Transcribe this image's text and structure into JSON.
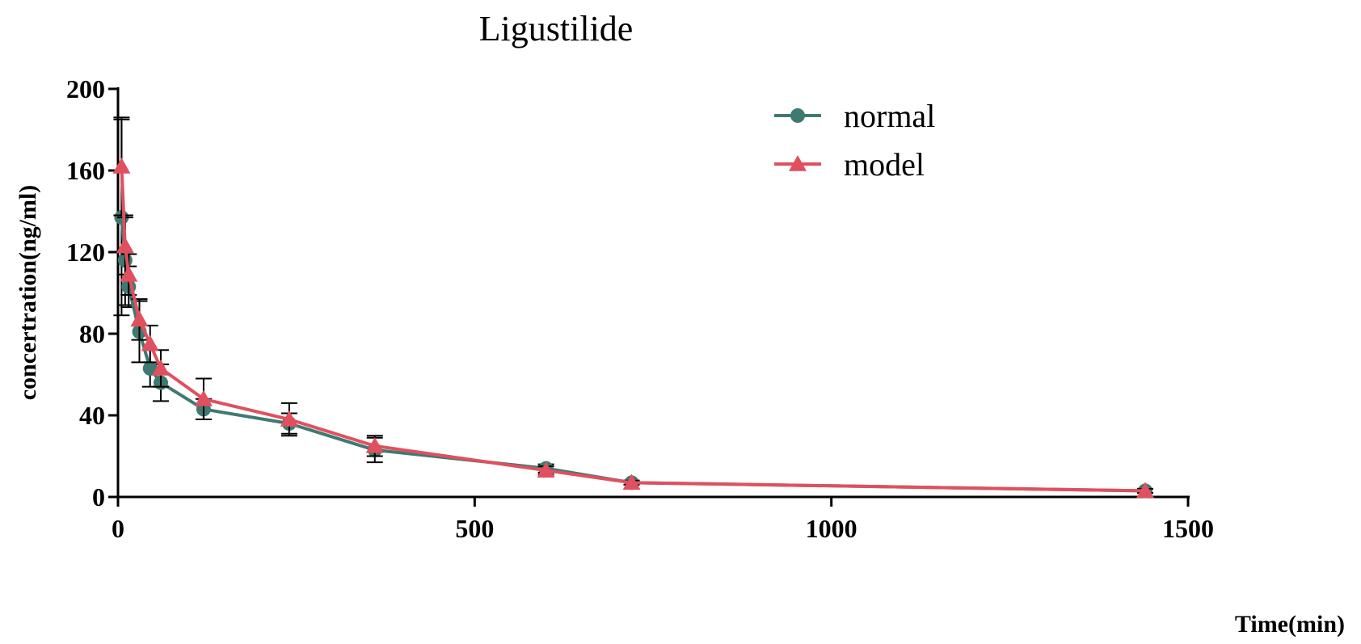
{
  "chart_data": {
    "type": "line",
    "title": "Ligustilide",
    "xlabel": "Time(min)",
    "ylabel": "concertration(ng/ml)",
    "xlim": [
      0,
      1500
    ],
    "ylim": [
      0,
      200
    ],
    "xticks": [
      "0",
      "500",
      "1000",
      "1500"
    ],
    "yticks": [
      "0",
      "40",
      "80",
      "120",
      "160",
      "200"
    ],
    "xtick_values": [
      0,
      500,
      1000,
      1500
    ],
    "ytick_values": [
      0,
      40,
      80,
      120,
      160,
      200
    ],
    "grid": false,
    "legend_position": "top-right",
    "series": [
      {
        "name": "normal",
        "color": "#3f7a72",
        "marker": "circle",
        "x": [
          5,
          10,
          15,
          30,
          45,
          60,
          120,
          240,
          360,
          600,
          720,
          1440
        ],
        "y": [
          137,
          116,
          103,
          81,
          63,
          56,
          43,
          36,
          23,
          14,
          7,
          3
        ],
        "err": [
          48,
          22,
          10,
          15,
          9,
          9,
          5,
          5,
          6,
          2,
          1,
          1
        ]
      },
      {
        "name": "model",
        "color": "#e0505e",
        "marker": "triangle",
        "x": [
          5,
          10,
          15,
          30,
          45,
          60,
          120,
          240,
          360,
          600,
          720,
          1440
        ],
        "y": [
          162,
          123,
          109,
          87,
          75,
          63,
          48,
          38,
          25,
          13,
          7,
          3
        ],
        "err": [
          24,
          14,
          10,
          10,
          9,
          9,
          10,
          8,
          5,
          2,
          1,
          1
        ]
      }
    ]
  }
}
